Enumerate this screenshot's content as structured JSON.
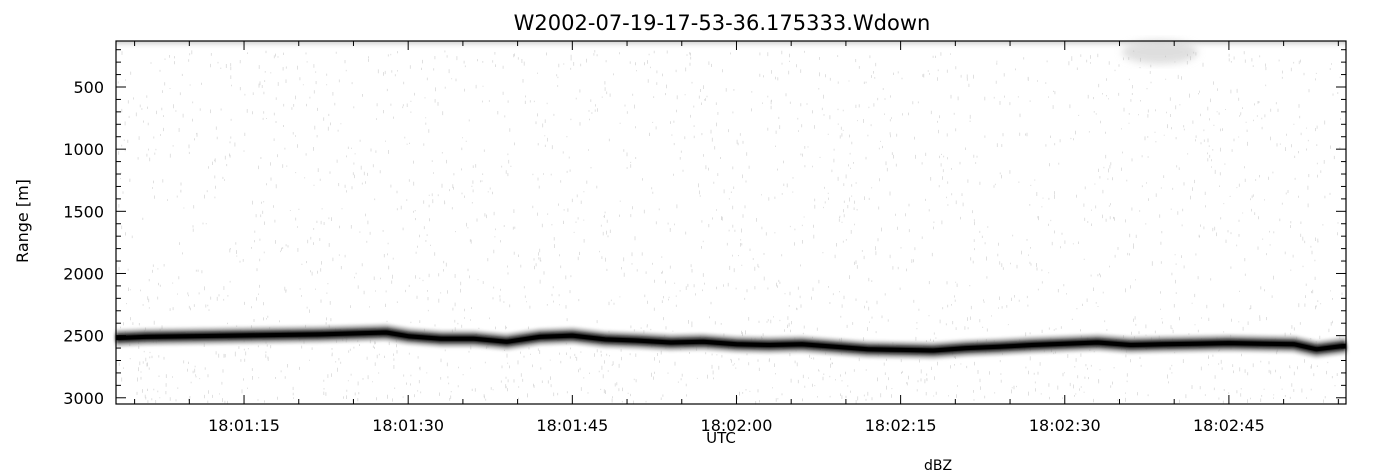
{
  "chart_data": {
    "type": "heatmap",
    "title": "W2002-07-19-17-53-36.175333.Wdown",
    "xlabel": "UTC",
    "ylabel": "Range [m]",
    "footer_label": "dBZ",
    "x_tick_labels": [
      "18:01:15",
      "18:01:30",
      "18:01:45",
      "18:02:00",
      "18:02:15",
      "18:02:30",
      "18:02:45"
    ],
    "x_ticks_seconds_after_1800": [
      75,
      90,
      105,
      120,
      135,
      150,
      165
    ],
    "xlim_seconds_after_1800": [
      63.3,
      175.7
    ],
    "y_tick_labels": [
      "500",
      "1000",
      "1500",
      "2000",
      "2500",
      "3000"
    ],
    "y_ticks": [
      500,
      1000,
      1500,
      2000,
      2500,
      3000
    ],
    "ylim": [
      3050,
      130
    ],
    "y_inverted": true,
    "colormap": "grayscale",
    "grid": false,
    "ground_return_range_m": {
      "x_seconds_after_1800": [
        63.3,
        66,
        70,
        74,
        78,
        82,
        86,
        88,
        90,
        93,
        96,
        99,
        102,
        105,
        108,
        111,
        114,
        117,
        120,
        123,
        126,
        129,
        132,
        135,
        138,
        141,
        144,
        147,
        150,
        153,
        156,
        159,
        162,
        165,
        168,
        171,
        173,
        175.7
      ],
      "values": [
        2520,
        2510,
        2505,
        2500,
        2495,
        2490,
        2480,
        2475,
        2505,
        2525,
        2525,
        2550,
        2510,
        2500,
        2530,
        2540,
        2555,
        2550,
        2570,
        2575,
        2570,
        2590,
        2610,
        2615,
        2620,
        2600,
        2590,
        2575,
        2565,
        2555,
        2575,
        2570,
        2565,
        2560,
        2565,
        2570,
        2610,
        2580
      ]
    }
  }
}
